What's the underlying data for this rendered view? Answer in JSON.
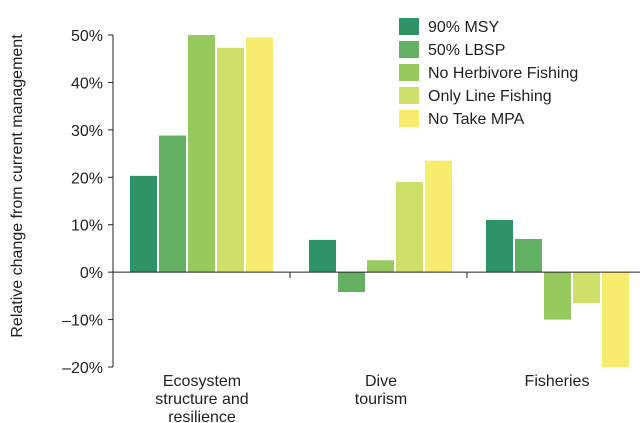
{
  "chart_data": {
    "type": "bar",
    "title": "",
    "xlabel": "",
    "ylabel": "Relative change from current management",
    "ylim": [
      -20,
      50
    ],
    "yticks": [
      -20,
      -10,
      0,
      10,
      20,
      30,
      40,
      50
    ],
    "ytick_labels": [
      "–20%",
      "–10%",
      "0%",
      "10%",
      "20%",
      "30%",
      "40%",
      "50%"
    ],
    "categories": [
      [
        "Ecosystem",
        "structure and",
        "resilience"
      ],
      [
        "Dive",
        "tourism"
      ],
      [
        "Fisheries"
      ]
    ],
    "series": [
      {
        "name": "90% MSY",
        "color": "#2e9468",
        "values": [
          20.3,
          6.8,
          11.0
        ]
      },
      {
        "name": "50% LBSP",
        "color": "#63b063",
        "values": [
          28.8,
          -4.2,
          7.0
        ]
      },
      {
        "name": "No Herbivore Fishing",
        "color": "#96c95e",
        "values": [
          50.0,
          2.5,
          -10.0
        ]
      },
      {
        "name": "Only Line Fishing",
        "color": "#cfe06a",
        "values": [
          47.3,
          19.0,
          -6.5
        ]
      },
      {
        "name": "No Take MPA",
        "color": "#f7ec6e",
        "values": [
          49.5,
          23.5,
          -20.0
        ]
      }
    ],
    "grid": false,
    "legend_position": "top-right"
  }
}
